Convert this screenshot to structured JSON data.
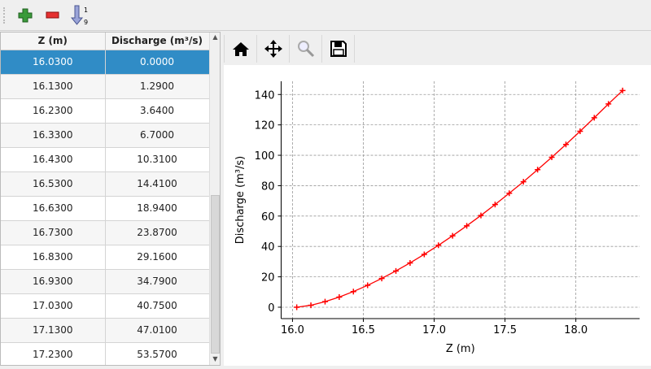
{
  "toolbar": {
    "add_icon": "plus-icon",
    "remove_icon": "minus-icon",
    "sort_icon": "sort-ascending-icon"
  },
  "table": {
    "columns": [
      "Z (m)",
      "Discharge (m³/s)"
    ],
    "rows": [
      [
        "16.0300",
        "0.0000"
      ],
      [
        "16.1300",
        "1.2900"
      ],
      [
        "16.2300",
        "3.6400"
      ],
      [
        "16.3300",
        "6.7000"
      ],
      [
        "16.4300",
        "10.3100"
      ],
      [
        "16.5300",
        "14.4100"
      ],
      [
        "16.6300",
        "18.9400"
      ],
      [
        "16.7300",
        "23.8700"
      ],
      [
        "16.8300",
        "29.1600"
      ],
      [
        "16.9300",
        "34.7900"
      ],
      [
        "17.0300",
        "40.7500"
      ],
      [
        "17.1300",
        "47.0100"
      ],
      [
        "17.2300",
        "53.5700"
      ]
    ],
    "selected_row": 0
  },
  "plot_toolbar": [
    "home-icon",
    "pan-icon",
    "zoom-icon",
    "save-icon"
  ],
  "chart_data": {
    "type": "line",
    "xlabel": "Z (m)",
    "ylabel": "Discharge (m³/s)",
    "xlim": [
      15.92,
      18.45
    ],
    "ylim": [
      -7.5,
      148.7
    ],
    "xticks": [
      "16.0",
      "16.5",
      "17.0",
      "17.5",
      "18.0"
    ],
    "yticks": [
      "0",
      "20",
      "40",
      "60",
      "80",
      "100",
      "120",
      "140"
    ],
    "grid": true,
    "color": "#ff0000",
    "marker": "+",
    "x": [
      16.03,
      16.13,
      16.23,
      16.33,
      16.43,
      16.53,
      16.63,
      16.73,
      16.83,
      16.93,
      17.03,
      17.13,
      17.23,
      17.33,
      17.43,
      17.53,
      17.63,
      17.73,
      17.83,
      17.93,
      18.03,
      18.13,
      18.23,
      18.33
    ],
    "y": [
      0,
      1.29,
      3.64,
      6.7,
      10.31,
      14.41,
      18.94,
      23.87,
      29.16,
      34.79,
      40.75,
      47.01,
      53.57,
      60.4,
      67.6,
      75.0,
      82.6,
      90.5,
      98.7,
      107.1,
      115.8,
      124.7,
      133.8,
      142.6
    ]
  }
}
